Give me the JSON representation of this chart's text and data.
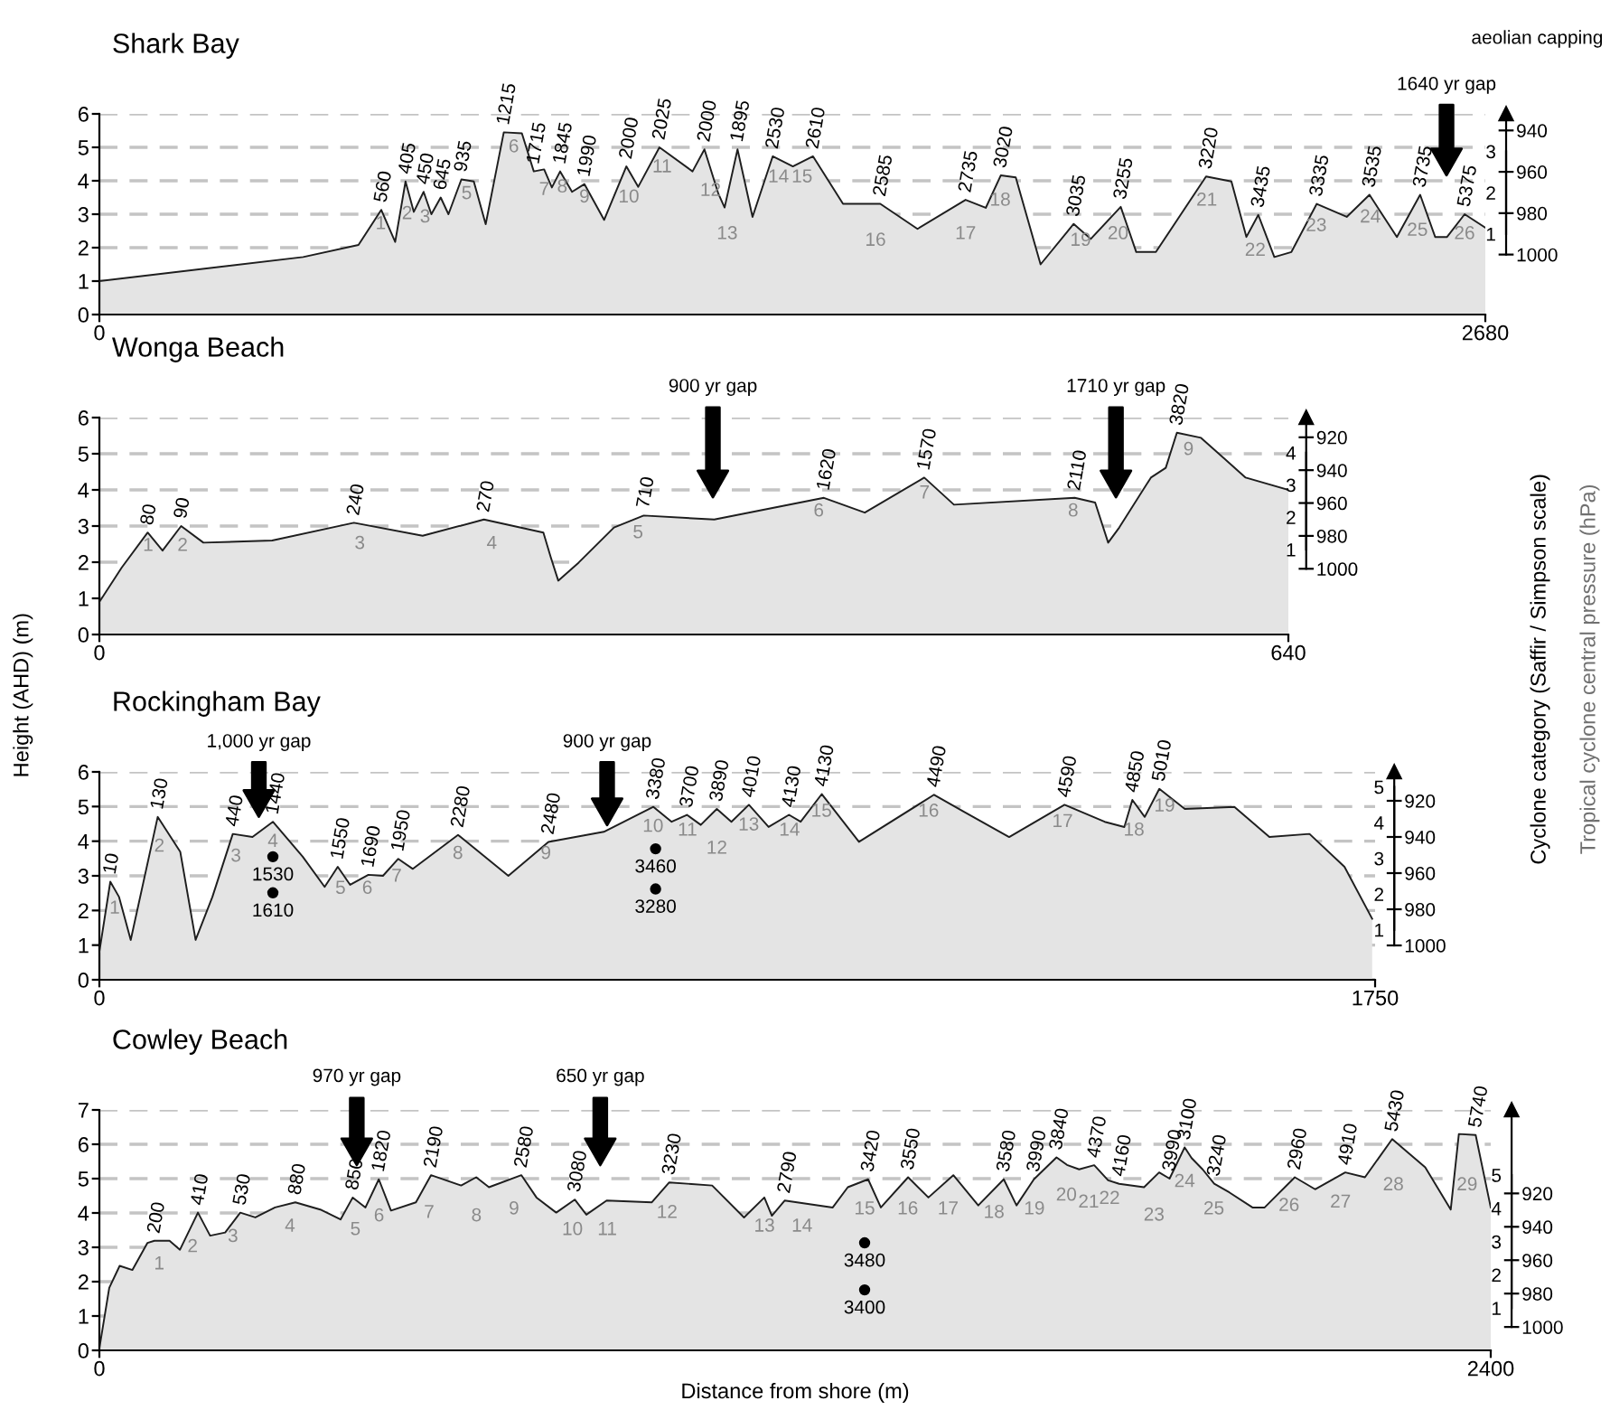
{
  "chart_data": [
    {
      "type": "area",
      "title": "Shark Bay",
      "series": [
        {
          "color": "#e4e4e4",
          "x": [
            0,
            394,
            501,
            545,
            572,
            592,
            608,
            627,
            642,
            660,
            675,
            700,
            724,
            747,
            782,
            817,
            840,
            860,
            875,
            891,
            914,
            938,
            976,
            1019,
            1042,
            1083,
            1147,
            1170,
            1197,
            1209,
            1234,
            1263,
            1302,
            1341,
            1380,
            1438,
            1510,
            1582,
            1675,
            1714,
            1743,
            1772,
            1820,
            1884,
            1917,
            1975,
            2005,
            2043,
            2140,
            2189,
            2218,
            2241,
            2272,
            2305,
            2354,
            2412,
            2456,
            2509,
            2554,
            2583,
            2606,
            2640,
            2680
          ],
          "values": [
            1.0,
            1.72,
            2.08,
            3.13,
            2.17,
            3.98,
            3.07,
            3.67,
            3.0,
            3.5,
            3.0,
            4.04,
            3.98,
            2.7,
            5.45,
            5.42,
            4.28,
            4.34,
            3.8,
            4.28,
            3.67,
            3.9,
            2.83,
            4.43,
            3.82,
            5.0,
            4.28,
            4.94,
            3.61,
            3.2,
            4.94,
            2.92,
            4.73,
            4.43,
            4.73,
            3.31,
            3.31,
            2.56,
            3.43,
            3.19,
            4.16,
            4.1,
            1.5,
            2.71,
            2.26,
            3.22,
            1.87,
            1.87,
            4.13,
            3.98,
            2.32,
            2.98,
            1.72,
            1.87,
            3.31,
            2.92,
            3.58,
            2.32,
            3.58,
            2.32,
            2.32,
            3.0,
            2.6
          ]
        }
      ],
      "xlim": [
        0,
        2680
      ],
      "xticks": [
        0,
        2680
      ],
      "ylim": [
        0,
        6
      ],
      "yticks": [
        0,
        1,
        2,
        3,
        4,
        5,
        6
      ],
      "grid": "y",
      "y2lim": [
        1029,
        932
      ],
      "y2ticks": [
        940,
        960,
        980,
        1000
      ],
      "y3lim": [
        1,
        3
      ],
      "y3ticks": [
        1,
        2,
        3
      ],
      "annotations": [
        "aeolian capping",
        "1640 yr gap",
        "1",
        "2",
        "3",
        "5",
        "6",
        "7",
        "8",
        "9",
        "10",
        "11",
        "12",
        "13",
        "14",
        "15",
        "16",
        "17",
        "18",
        "19",
        "20",
        "21",
        "22",
        "23",
        "24",
        "25",
        "26",
        {
          "text": "560",
          "x": 545,
          "y": 3.13
        },
        {
          "text": "405",
          "x": 592,
          "y": 3.98
        },
        {
          "text": "450",
          "x": 627,
          "y": 3.67
        },
        {
          "text": "645",
          "x": 660,
          "y": 3.5
        },
        {
          "text": "935",
          "x": 700,
          "y": 4.04
        },
        {
          "text": "1215",
          "x": 782,
          "y": 5.45
        },
        {
          "text": "1715",
          "x": 840,
          "y": 4.28
        },
        {
          "text": "1845",
          "x": 891,
          "y": 4.28
        },
        {
          "text": "1990",
          "x": 938,
          "y": 3.9
        },
        {
          "text": "2000",
          "x": 1019,
          "y": 4.43
        },
        {
          "text": "2025",
          "x": 1083,
          "y": 5.0
        },
        {
          "text": "2000",
          "x": 1170,
          "y": 4.94
        },
        {
          "text": "1895",
          "x": 1234,
          "y": 4.94
        },
        {
          "text": "2530",
          "x": 1302,
          "y": 4.73
        },
        {
          "text": "2610",
          "x": 1380,
          "y": 4.73
        },
        {
          "text": "2585",
          "x": 1510,
          "y": 3.31
        },
        {
          "text": "2735",
          "x": 1675,
          "y": 3.43
        },
        {
          "text": "3020",
          "x": 1743,
          "y": 4.16
        },
        {
          "text": "3035",
          "x": 1884,
          "y": 2.71
        },
        {
          "text": "3255",
          "x": 1975,
          "y": 3.22
        },
        {
          "text": "3220",
          "x": 2140,
          "y": 4.13
        },
        {
          "text": "3435",
          "x": 2241,
          "y": 2.98
        },
        {
          "text": "3335",
          "x": 2354,
          "y": 3.31
        },
        {
          "text": "3535",
          "x": 2456,
          "y": 3.58
        },
        {
          "text": "3735",
          "x": 2554,
          "y": 3.58
        },
        {
          "text": "5375",
          "x": 2640,
          "y": 3.0
        }
      ]
    },
    {
      "type": "area",
      "title": "Wonga Beach",
      "ylabel": "Height (AHD) (m)",
      "y2label": "Tropical cyclone central pressure (hPa)",
      "y3label": "Cyclone category (Saffir / Simpson scale)",
      "series": [
        {
          "color": "#e4e4e4",
          "x": [
            0,
            12,
            26,
            34,
            44,
            56,
            93,
            137,
            174,
            207,
            239,
            243,
            247,
            258,
            277,
            293,
            331,
            390,
            412,
            444,
            460,
            525,
            536,
            543,
            549,
            566,
            574,
            580,
            593,
            617,
            640
          ],
          "values": [
            0.9,
            1.85,
            2.82,
            2.32,
            3.0,
            2.54,
            2.6,
            3.09,
            2.73,
            3.18,
            2.82,
            2.13,
            1.49,
            1.99,
            2.96,
            3.29,
            3.18,
            3.78,
            3.37,
            4.34,
            3.59,
            3.78,
            3.65,
            2.54,
            2.96,
            4.34,
            4.61,
            5.58,
            5.44,
            4.34,
            4.0
          ]
        }
      ],
      "xlim": [
        0,
        640
      ],
      "xticks": [
        0,
        640
      ],
      "ylim": [
        0,
        6
      ],
      "yticks": [
        0,
        1,
        2,
        3,
        4,
        5,
        6
      ],
      "grid": "y",
      "y2lim": [
        1040,
        908
      ],
      "y2ticks": [
        920,
        940,
        960,
        980,
        1000
      ],
      "y3lim": [
        1,
        4
      ],
      "y3ticks": [
        1,
        2,
        3,
        4
      ],
      "annotations": [
        "900 yr gap",
        "1710 yr gap",
        "1",
        "2",
        "3",
        "4",
        "5",
        "6",
        "7",
        "8",
        "9",
        {
          "text": "80",
          "x": 26,
          "y": 2.82
        },
        {
          "text": "90",
          "x": 44,
          "y": 3.0
        },
        {
          "text": "240",
          "x": 137,
          "y": 3.09
        },
        {
          "text": "270",
          "x": 207,
          "y": 3.18
        },
        {
          "text": "710",
          "x": 293,
          "y": 3.29
        },
        {
          "text": "1620",
          "x": 390,
          "y": 3.78
        },
        {
          "text": "1570",
          "x": 444,
          "y": 4.34
        },
        {
          "text": "2110",
          "x": 525,
          "y": 3.78
        },
        {
          "text": "3820",
          "x": 580,
          "y": 5.58
        }
      ]
    },
    {
      "type": "area",
      "title": "Rockingham Bay",
      "series": [
        {
          "color": "#e4e4e4",
          "x": [
            0,
            15,
            27,
            43,
            80,
            111,
            132,
            155,
            183,
            210,
            238,
            279,
            309,
            327,
            344,
            369,
            389,
            410,
            430,
            492,
            561,
            616,
            692,
            760,
            785,
            806,
            825,
            847,
            867,
            891,
            918,
            946,
            962,
            991,
            1042,
            1145,
            1186,
            1248,
            1324,
            1379,
            1406,
            1417,
            1434,
            1454,
            1489,
            1557,
            1605,
            1660,
            1708,
            1746
          ],
          "values": [
            0.81,
            2.83,
            2.39,
            1.15,
            4.7,
            3.69,
            1.15,
            2.39,
            4.21,
            4.12,
            4.56,
            3.55,
            2.68,
            3.26,
            2.74,
            3.03,
            3.0,
            3.49,
            3.2,
            4.18,
            3.0,
            3.98,
            4.27,
            4.99,
            4.56,
            4.76,
            4.47,
            4.93,
            4.56,
            5.05,
            4.41,
            4.76,
            4.56,
            5.36,
            3.98,
            5.34,
            4.85,
            4.12,
            5.05,
            4.56,
            4.41,
            5.19,
            4.7,
            5.51,
            4.93,
            4.99,
            4.12,
            4.21,
            3.26,
            1.76
          ]
        },
        {
          "type": "scatter",
          "marker": "circle",
          "color": "#000000",
          "x": [
            238,
            238,
            763,
            763
          ],
          "values": [
            3.55,
            2.51,
            3.78,
            2.62
          ]
        }
      ],
      "xlim": [
        0,
        1750
      ],
      "xticks": [
        0,
        1750
      ],
      "ylim": [
        0,
        6
      ],
      "yticks": [
        0,
        1,
        2,
        3,
        4,
        5,
        6
      ],
      "grid": "y",
      "y2lim": [
        1019,
        904
      ],
      "y2ticks": [
        920,
        940,
        960,
        980,
        1000
      ],
      "y3lim": [
        1,
        5
      ],
      "y3ticks": [
        1,
        2,
        3,
        4,
        5
      ],
      "annotations": [
        "1,000 yr gap",
        "900 yr gap",
        "1",
        "2",
        "3",
        "4",
        "5",
        "6",
        "7",
        "8",
        "9",
        "10",
        "11",
        "12",
        "13",
        "14",
        "15",
        "16",
        "17",
        "18",
        "19",
        {
          "text": "10",
          "x": 15,
          "y": 2.83
        },
        {
          "text": "130",
          "x": 80,
          "y": 4.7
        },
        {
          "text": "440",
          "x": 183,
          "y": 4.21
        },
        {
          "text": "1440",
          "x": 238,
          "y": 4.56
        },
        {
          "text": "1550",
          "x": 327,
          "y": 3.26
        },
        {
          "text": "1690",
          "x": 369,
          "y": 3.03
        },
        {
          "text": "1950",
          "x": 410,
          "y": 3.49
        },
        {
          "text": "2280",
          "x": 492,
          "y": 4.18
        },
        {
          "text": "2480",
          "x": 616,
          "y": 3.98
        },
        {
          "text": "3380",
          "x": 760,
          "y": 4.99
        },
        {
          "text": "3700",
          "x": 806,
          "y": 4.76
        },
        {
          "text": "3890",
          "x": 847,
          "y": 4.93
        },
        {
          "text": "4010",
          "x": 891,
          "y": 5.05
        },
        {
          "text": "4130",
          "x": 946,
          "y": 4.76
        },
        {
          "text": "4130",
          "x": 991,
          "y": 5.36
        },
        {
          "text": "4490",
          "x": 1145,
          "y": 5.34
        },
        {
          "text": "4590",
          "x": 1324,
          "y": 5.05
        },
        {
          "text": "4850",
          "x": 1417,
          "y": 5.19
        },
        {
          "text": "5010",
          "x": 1454,
          "y": 5.51
        },
        {
          "text": "1530",
          "x": 238,
          "y": 3.55
        },
        {
          "text": "1610",
          "x": 238,
          "y": 2.51
        },
        {
          "text": "3460",
          "x": 763,
          "y": 3.78
        },
        {
          "text": "3280",
          "x": 763,
          "y": 2.62
        }
      ]
    },
    {
      "type": "area",
      "title": "Cowley Beach",
      "xlabel": "Distance from shore (m)",
      "series": [
        {
          "color": "#e4e4e4",
          "x": [
            0,
            17,
            35,
            57,
            83,
            95,
            121,
            139,
            170,
            191,
            217,
            243,
            269,
            303,
            338,
            381,
            416,
            437,
            459,
            482,
            503,
            546,
            572,
            624,
            650,
            672,
            728,
            754,
            788,
            820,
            840,
            875,
            953,
            983,
            1057,
            1112,
            1147,
            1160,
            1182,
            1265,
            1291,
            1326,
            1348,
            1395,
            1430,
            1473,
            1516,
            1560,
            1582,
            1612,
            1651,
            1669,
            1690,
            1716,
            1740,
            1759,
            1802,
            1828,
            1846,
            1872,
            1884,
            1903,
            1923,
            1949,
            1989,
            2010,
            2062,
            2097,
            2149,
            2183,
            2230,
            2287,
            2331,
            2345,
            2374,
            2400
          ],
          "values": [
            0.06,
            1.82,
            2.46,
            2.34,
            3.13,
            3.19,
            3.19,
            2.93,
            4.01,
            3.34,
            3.43,
            4.01,
            3.87,
            4.16,
            4.31,
            4.1,
            3.81,
            4.45,
            4.16,
            4.98,
            4.07,
            4.31,
            5.1,
            4.8,
            5.04,
            4.75,
            5.1,
            4.45,
            4.01,
            4.39,
            3.95,
            4.36,
            4.31,
            4.89,
            4.8,
            3.87,
            4.45,
            3.92,
            4.36,
            4.16,
            4.75,
            4.98,
            4.16,
            5.04,
            4.45,
            5.1,
            4.22,
            4.98,
            4.22,
            4.98,
            5.62,
            5.4,
            5.27,
            5.39,
            4.95,
            4.85,
            4.75,
            5.18,
            5.0,
            5.91,
            5.6,
            5.27,
            4.85,
            4.6,
            4.16,
            4.16,
            5.04,
            4.69,
            5.18,
            5.04,
            6.15,
            5.33,
            4.1,
            6.3,
            6.27,
            4.16
          ]
        },
        {
          "type": "scatter",
          "marker": "circle",
          "color": "#000000",
          "x": [
            1320,
            1320
          ],
          "values": [
            3.13,
            1.76
          ]
        }
      ],
      "xlim": [
        0,
        2400
      ],
      "xticks": [
        0,
        2400
      ],
      "ylim": [
        0,
        7
      ],
      "yticks": [
        0,
        1,
        2,
        3,
        4,
        5,
        6,
        7
      ],
      "grid": "y",
      "y2lim": [
        1014,
        870
      ],
      "y2ticks": [
        920,
        940,
        960,
        980,
        1000
      ],
      "y3lim": [
        1,
        5
      ],
      "y3ticks": [
        1,
        2,
        3,
        4,
        5
      ],
      "annotations": [
        "970 yr gap",
        "650 yr gap",
        "1",
        "2",
        "3",
        "4",
        "5",
        "6",
        "7",
        "8",
        "9",
        "10",
        "11",
        "12",
        "13",
        "14",
        "15",
        "16",
        "17",
        "18",
        "19",
        "20",
        "21",
        "22",
        "23",
        "24",
        "25",
        "26",
        "27",
        "28",
        "29",
        {
          "text": "200",
          "x": 95,
          "y": 3.19
        },
        {
          "text": "410",
          "x": 170,
          "y": 4.01
        },
        {
          "text": "530",
          "x": 243,
          "y": 4.01
        },
        {
          "text": "880",
          "x": 338,
          "y": 4.31
        },
        {
          "text": "850",
          "x": 437,
          "y": 4.45
        },
        {
          "text": "1820",
          "x": 482,
          "y": 4.98
        },
        {
          "text": "2190",
          "x": 572,
          "y": 5.1
        },
        {
          "text": "2580",
          "x": 728,
          "y": 5.1
        },
        {
          "text": "3080",
          "x": 820,
          "y": 4.39
        },
        {
          "text": "3230",
          "x": 983,
          "y": 4.89
        },
        {
          "text": "2790",
          "x": 1182,
          "y": 4.36
        },
        {
          "text": "3420",
          "x": 1326,
          "y": 4.98
        },
        {
          "text": "3550",
          "x": 1395,
          "y": 5.04
        },
        {
          "text": "3580",
          "x": 1560,
          "y": 4.98
        },
        {
          "text": "3990",
          "x": 1612,
          "y": 4.98
        },
        {
          "text": "3840",
          "x": 1651,
          "y": 5.62
        },
        {
          "text": "4370",
          "x": 1716,
          "y": 5.39
        },
        {
          "text": "4160",
          "x": 1759,
          "y": 4.85
        },
        {
          "text": "3990",
          "x": 1846,
          "y": 5.0
        },
        {
          "text": "3100",
          "x": 1872,
          "y": 5.91
        },
        {
          "text": "3240",
          "x": 1923,
          "y": 4.85
        },
        {
          "text": "2960",
          "x": 2062,
          "y": 5.04
        },
        {
          "text": "4910",
          "x": 2149,
          "y": 5.18
        },
        {
          "text": "5430",
          "x": 2230,
          "y": 6.15
        },
        {
          "text": "5740",
          "x": 2374,
          "y": 6.27
        },
        {
          "text": "3480",
          "x": 1320,
          "y": 3.13
        },
        {
          "text": "3400",
          "x": 1320,
          "y": 1.76
        }
      ]
    }
  ]
}
